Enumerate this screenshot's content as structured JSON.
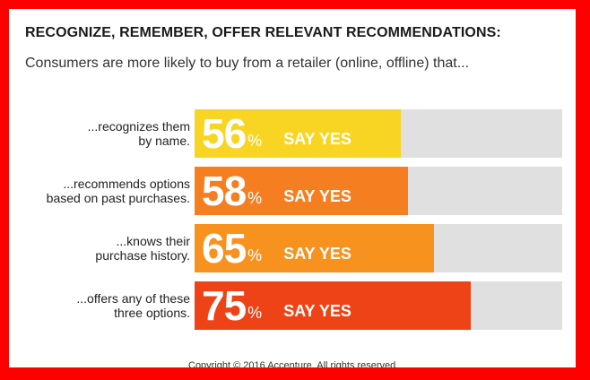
{
  "chart_data": {
    "type": "bar",
    "orientation": "horizontal",
    "title": "RECOGNIZE, REMEMBER, OFFER RELEVANT RECOMMENDATIONS:",
    "subtitle": "Consumers are more likely to buy from a retailer (online, offline) that...",
    "xlim": [
      0,
      100
    ],
    "percent_sign": "%",
    "value_suffix": "SAY YES",
    "categories": [
      [
        "...recognizes them",
        "by name."
      ],
      [
        "...recommends options",
        "based on past purchases."
      ],
      [
        "...knows their",
        "purchase history."
      ],
      [
        "...offers any of these",
        "three options."
      ]
    ],
    "values": [
      56,
      58,
      65,
      75
    ],
    "colors": [
      "#f9d523",
      "#f57f20",
      "#f8921e",
      "#ee4316"
    ],
    "track_color": "#e0e0e0"
  },
  "footer": "Copyright © 2016 Accenture. All rights reserved."
}
